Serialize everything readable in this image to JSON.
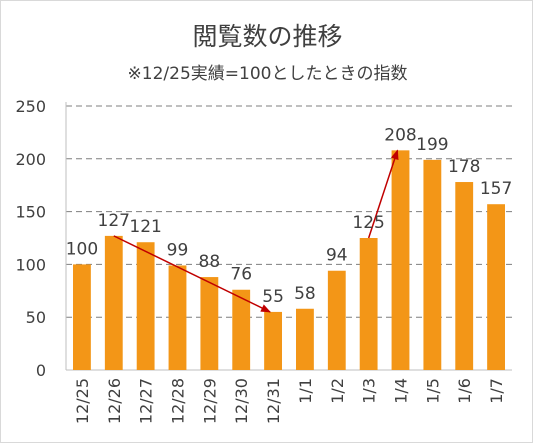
{
  "chart_data": {
    "type": "bar",
    "title": "閲覧数の推移",
    "subtitle": "※12/25実績=100としたときの指数",
    "categories": [
      "12/25",
      "12/26",
      "12/27",
      "12/28",
      "12/29",
      "12/30",
      "12/31",
      "1/1",
      "1/2",
      "1/3",
      "1/4",
      "1/5",
      "1/6",
      "1/7"
    ],
    "values": [
      100,
      127,
      121,
      99,
      88,
      76,
      55,
      58,
      94,
      125,
      208,
      199,
      178,
      157
    ],
    "ylim": [
      0,
      250
    ],
    "yticks": [
      0,
      50,
      100,
      150,
      200,
      250
    ],
    "grid": true,
    "bar_color": "#f39617",
    "arrow_color": "#c00000",
    "annotations": [
      {
        "type": "arrow",
        "from": "12/26",
        "to": "12/31"
      },
      {
        "type": "arrow",
        "from": "1/3",
        "to": "1/4"
      }
    ]
  }
}
